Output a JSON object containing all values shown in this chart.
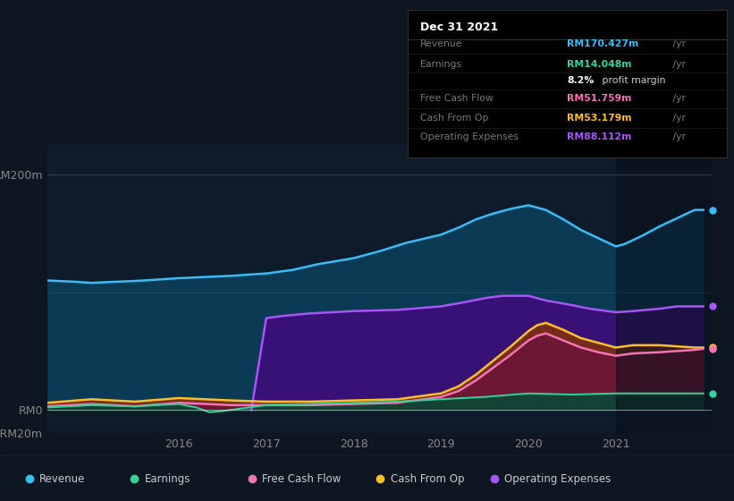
{
  "bg_color": "#0e1621",
  "plot_bg_color": "#0d1b2a",
  "ylim": [
    -20,
    225
  ],
  "xlim": [
    2014.5,
    2022.1
  ],
  "xticks": [
    2016,
    2017,
    2018,
    2019,
    2020,
    2021
  ],
  "yticks_pos": [
    -20,
    0,
    200
  ],
  "ytick_labels": [
    "-RM20m",
    "RM0",
    "RM200m"
  ],
  "highlight_start": 2021.0,
  "highlight_end": 2022.1,
  "tooltip": {
    "title": "Dec 31 2021",
    "rows": [
      {
        "label": "Revenue",
        "value": "RM170.427m",
        "unit": " /yr",
        "color": "#38bdf8"
      },
      {
        "label": "Earnings",
        "value": "RM14.048m",
        "unit": " /yr",
        "color": "#34d399"
      },
      {
        "label": "",
        "value": "8.2%",
        "unit": " profit margin",
        "color": "#ffffff"
      },
      {
        "label": "Free Cash Flow",
        "value": "RM51.759m",
        "unit": " /yr",
        "color": "#f472b6"
      },
      {
        "label": "Cash From Op",
        "value": "RM53.179m",
        "unit": " /yr",
        "color": "#fbbf24"
      },
      {
        "label": "Operating Expenses",
        "value": "RM88.112m",
        "unit": " /yr",
        "color": "#a855f7"
      }
    ]
  },
  "legend_items": [
    {
      "label": "Revenue",
      "color": "#38bdf8"
    },
    {
      "label": "Earnings",
      "color": "#34d399"
    },
    {
      "label": "Free Cash Flow",
      "color": "#f472b6"
    },
    {
      "label": "Cash From Op",
      "color": "#fbbf24"
    },
    {
      "label": "Operating Expenses",
      "color": "#a855f7"
    }
  ],
  "series": {
    "revenue": {
      "x": [
        2014.5,
        2014.8,
        2015.0,
        2015.3,
        2015.6,
        2016.0,
        2016.3,
        2016.6,
        2017.0,
        2017.3,
        2017.6,
        2018.0,
        2018.3,
        2018.6,
        2019.0,
        2019.2,
        2019.4,
        2019.6,
        2019.8,
        2020.0,
        2020.2,
        2020.4,
        2020.6,
        2020.8,
        2021.0,
        2021.1,
        2021.3,
        2021.5,
        2021.7,
        2021.9,
        2022.0
      ],
      "y": [
        110,
        109,
        108,
        109,
        110,
        112,
        113,
        114,
        116,
        119,
        124,
        129,
        135,
        142,
        149,
        155,
        162,
        167,
        171,
        174,
        170,
        162,
        153,
        146,
        139,
        141,
        148,
        156,
        163,
        170,
        170
      ],
      "line_color": "#38bdf8",
      "fill_color": "#0b3a55",
      "lw": 1.8
    },
    "operating_expenses": {
      "x": [
        2016.83,
        2017.0,
        2017.2,
        2017.5,
        2018.0,
        2018.5,
        2019.0,
        2019.3,
        2019.5,
        2019.7,
        2019.9,
        2020.0,
        2020.2,
        2020.5,
        2020.7,
        2020.9,
        2021.0,
        2021.2,
        2021.5,
        2021.7,
        2021.9,
        2022.0
      ],
      "y": [
        0,
        78,
        80,
        82,
        84,
        85,
        88,
        92,
        95,
        97,
        97,
        97,
        93,
        89,
        86,
        84,
        83,
        84,
        86,
        88,
        88,
        88
      ],
      "line_color": "#a855f7",
      "fill_color": "#3b0f7a",
      "lw": 1.8
    },
    "cash_from_op": {
      "x": [
        2014.5,
        2015.0,
        2015.5,
        2016.0,
        2016.3,
        2016.6,
        2017.0,
        2017.5,
        2018.0,
        2018.5,
        2019.0,
        2019.2,
        2019.4,
        2019.6,
        2019.8,
        2020.0,
        2020.1,
        2020.2,
        2020.4,
        2020.6,
        2020.8,
        2021.0,
        2021.2,
        2021.5,
        2021.7,
        2021.9,
        2022.0
      ],
      "y": [
        6,
        9,
        7,
        10,
        9,
        8,
        7,
        7,
        8,
        9,
        14,
        20,
        30,
        42,
        54,
        67,
        72,
        74,
        68,
        61,
        57,
        53,
        55,
        55,
        54,
        53,
        53
      ],
      "line_color": "#fbbf24",
      "fill_color": "#7c3010",
      "lw": 1.8
    },
    "free_cash_flow": {
      "x": [
        2014.5,
        2015.0,
        2015.5,
        2016.0,
        2016.3,
        2016.6,
        2017.0,
        2017.5,
        2018.0,
        2018.5,
        2019.0,
        2019.2,
        2019.4,
        2019.6,
        2019.8,
        2020.0,
        2020.1,
        2020.2,
        2020.4,
        2020.6,
        2020.8,
        2021.0,
        2021.2,
        2021.5,
        2021.7,
        2021.9,
        2022.0
      ],
      "y": [
        3,
        5,
        3,
        6,
        5,
        4,
        4,
        4,
        5,
        6,
        11,
        16,
        25,
        36,
        47,
        59,
        63,
        65,
        59,
        53,
        49,
        46,
        48,
        49,
        50,
        51,
        52
      ],
      "line_color": "#f472b6",
      "fill_color": "#6b1538",
      "lw": 1.8
    },
    "earnings": {
      "x": [
        2014.5,
        2015.0,
        2015.5,
        2016.0,
        2016.2,
        2016.35,
        2016.5,
        2016.7,
        2016.9,
        2017.0,
        2017.5,
        2018.0,
        2018.5,
        2019.0,
        2019.5,
        2020.0,
        2020.5,
        2021.0,
        2021.5,
        2022.0
      ],
      "y": [
        2,
        4,
        3,
        5,
        2,
        -2,
        -1,
        1,
        3,
        4,
        5,
        6,
        7,
        9,
        11,
        14,
        13,
        14,
        14,
        14
      ],
      "line_color": "#34d399",
      "fill_color": "#054a35",
      "lw": 1.4
    }
  },
  "dots_right": [
    {
      "y": 170,
      "color": "#38bdf8"
    },
    {
      "y": 88,
      "color": "#a855f7"
    },
    {
      "y": 53,
      "color": "#fbbf24"
    },
    {
      "y": 52,
      "color": "#f472b6"
    },
    {
      "y": 14,
      "color": "#34d399"
    }
  ]
}
